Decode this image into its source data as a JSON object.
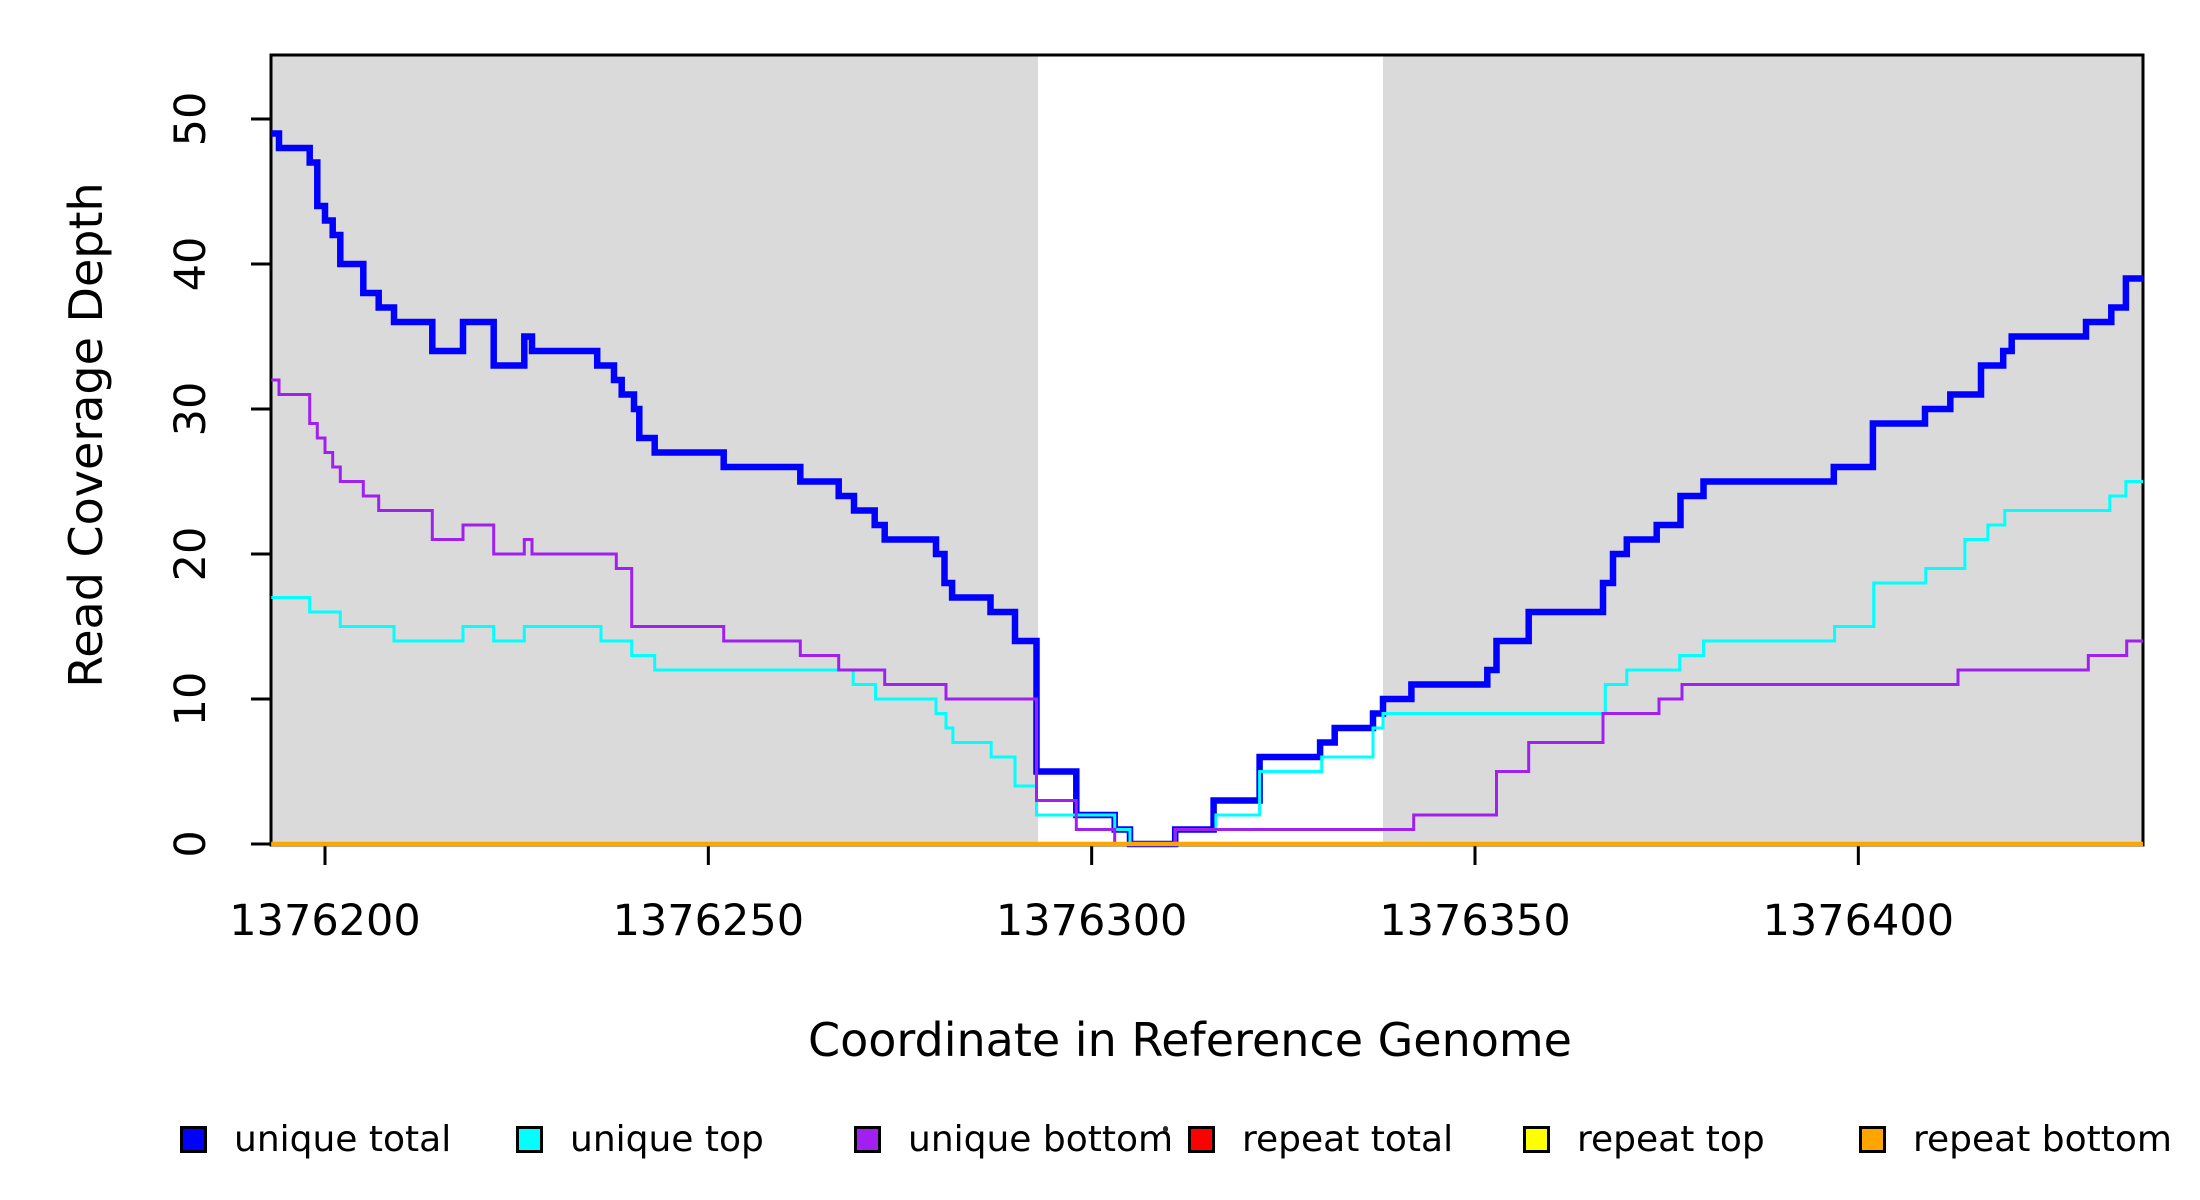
{
  "chart_data": {
    "type": "line",
    "step": true,
    "title": "",
    "xlabel": "Coordinate in Reference Genome",
    "ylabel": "Read Coverage Depth",
    "x_range": [
      1376193,
      1376437
    ],
    "ylim": [
      0,
      54
    ],
    "x_ticks": [
      1376200,
      1376250,
      1376300,
      1376350,
      1376400
    ],
    "y_ticks": [
      0,
      10,
      20,
      30,
      40,
      50
    ],
    "grid": false,
    "legend_position": "bottom",
    "band_color": "#DADADA",
    "plot_border_color": "#000000",
    "shaded_regions": [
      {
        "x0": 1376193,
        "x1": 1376293
      },
      {
        "x0": 1376338,
        "x1": 1376437.5
      }
    ],
    "series": [
      {
        "name": "unique total",
        "color": "#0000FF",
        "width": 6.5,
        "points": [
          [
            1376193,
            49
          ],
          [
            1376194,
            48
          ],
          [
            1376198,
            47
          ],
          [
            1376199,
            44
          ],
          [
            1376200,
            43
          ],
          [
            1376201,
            42
          ],
          [
            1376202,
            40
          ],
          [
            1376205,
            38
          ],
          [
            1376207,
            37
          ],
          [
            1376209,
            36
          ],
          [
            1376214,
            34
          ],
          [
            1376218,
            36
          ],
          [
            1376222,
            33
          ],
          [
            1376226,
            35
          ],
          [
            1376227,
            34
          ],
          [
            1376235.5,
            33
          ],
          [
            1376237.7,
            32
          ],
          [
            1376238.7,
            31
          ],
          [
            1376240.3,
            30
          ],
          [
            1376241,
            28
          ],
          [
            1376243,
            27
          ],
          [
            1376252,
            26
          ],
          [
            1376262,
            25
          ],
          [
            1376267,
            24
          ],
          [
            1376269,
            23
          ],
          [
            1376271.7,
            22
          ],
          [
            1376273,
            21
          ],
          [
            1376279.7,
            20
          ],
          [
            1376280.8,
            18
          ],
          [
            1376281.8,
            17
          ],
          [
            1376286.8,
            16
          ],
          [
            1376290,
            14
          ],
          [
            1376292.8,
            5
          ],
          [
            1376298,
            2
          ],
          [
            1376303,
            1
          ],
          [
            1376305,
            0
          ],
          [
            1376310.9,
            1
          ],
          [
            1376315.9,
            3
          ],
          [
            1376321.9,
            6
          ],
          [
            1376329.8,
            7
          ],
          [
            1376331.7,
            8
          ],
          [
            1376336.7,
            9
          ],
          [
            1376338,
            10
          ],
          [
            1376341.7,
            11
          ],
          [
            1376351.6,
            12
          ],
          [
            1376352.8,
            14
          ],
          [
            1376357,
            16
          ],
          [
            1376366.7,
            18
          ],
          [
            1376368,
            20
          ],
          [
            1376369.8,
            21
          ],
          [
            1376373.7,
            22
          ],
          [
            1376376.8,
            24
          ],
          [
            1376379.8,
            25
          ],
          [
            1376396.8,
            26
          ],
          [
            1376401.9,
            29
          ],
          [
            1376408.7,
            30
          ],
          [
            1376412,
            31
          ],
          [
            1376416,
            33
          ],
          [
            1376418.9,
            34
          ],
          [
            1376420,
            35
          ],
          [
            1376429.7,
            36
          ],
          [
            1376433,
            37
          ],
          [
            1376434.9,
            39
          ]
        ]
      },
      {
        "name": "unique top",
        "color": "#00FFFF",
        "width": 3,
        "points": [
          [
            1376193,
            17
          ],
          [
            1376198,
            16
          ],
          [
            1376202,
            15
          ],
          [
            1376209,
            14
          ],
          [
            1376218,
            15
          ],
          [
            1376222,
            14
          ],
          [
            1376226,
            15
          ],
          [
            1376236,
            14
          ],
          [
            1376240,
            13
          ],
          [
            1376243,
            12
          ],
          [
            1376268.9,
            11
          ],
          [
            1376271.8,
            10
          ],
          [
            1376279.7,
            9
          ],
          [
            1376281,
            8
          ],
          [
            1376281.9,
            7
          ],
          [
            1376286.9,
            6
          ],
          [
            1376290,
            4
          ],
          [
            1376292.8,
            2
          ],
          [
            1376303,
            1
          ],
          [
            1376305,
            0
          ],
          [
            1376310.9,
            1
          ],
          [
            1376316.2,
            2
          ],
          [
            1376321.9,
            5
          ],
          [
            1376330,
            6
          ],
          [
            1376336.7,
            8
          ],
          [
            1376338,
            9
          ],
          [
            1376367,
            11
          ],
          [
            1376369.8,
            12
          ],
          [
            1376376.7,
            13
          ],
          [
            1376379.8,
            14
          ],
          [
            1376396.9,
            15
          ],
          [
            1376402,
            18
          ],
          [
            1376408.8,
            19
          ],
          [
            1376413.9,
            21
          ],
          [
            1376416.9,
            22
          ],
          [
            1376419.1,
            23
          ],
          [
            1376432.8,
            24
          ],
          [
            1376434.9,
            25
          ]
        ]
      },
      {
        "name": "unique bottom",
        "color": "#A020F0",
        "width": 3,
        "points": [
          [
            1376193,
            32
          ],
          [
            1376194,
            31
          ],
          [
            1376198,
            29
          ],
          [
            1376199,
            28
          ],
          [
            1376200,
            27
          ],
          [
            1376201,
            26
          ],
          [
            1376202,
            25
          ],
          [
            1376205,
            24
          ],
          [
            1376207,
            23
          ],
          [
            1376214,
            21
          ],
          [
            1376218,
            22
          ],
          [
            1376222,
            20
          ],
          [
            1376226,
            21
          ],
          [
            1376227,
            20
          ],
          [
            1376238,
            19
          ],
          [
            1376240,
            15
          ],
          [
            1376252,
            14
          ],
          [
            1376262,
            13
          ],
          [
            1376267,
            12
          ],
          [
            1376273,
            11
          ],
          [
            1376281,
            10
          ],
          [
            1376292.8,
            3
          ],
          [
            1376298,
            1
          ],
          [
            1376303,
            0
          ],
          [
            1376310.9,
            1
          ],
          [
            1376342,
            2
          ],
          [
            1376352.8,
            5
          ],
          [
            1376357,
            7
          ],
          [
            1376366.7,
            9
          ],
          [
            1376374,
            10
          ],
          [
            1376377,
            11
          ],
          [
            1376413,
            12
          ],
          [
            1376430,
            13
          ],
          [
            1376435,
            14
          ]
        ]
      },
      {
        "name": "repeat total",
        "color": "#FF0000",
        "width": 3,
        "points": [
          [
            1376193,
            0
          ]
        ]
      },
      {
        "name": "repeat top",
        "color": "#FFFF00",
        "width": 3,
        "points": [
          [
            1376193,
            0
          ]
        ]
      },
      {
        "name": "repeat bottom",
        "color": "#FFA500",
        "width": 4.5,
        "points": [
          [
            1376193,
            0
          ]
        ]
      }
    ]
  },
  "x_tick_labels": [
    "1376200",
    "1376250",
    "1376300",
    "1376350",
    "1376400"
  ],
  "y_tick_labels": [
    "0",
    "10",
    "20",
    "30",
    "40",
    "50"
  ],
  "legend": {
    "items": [
      {
        "label": "unique total",
        "color": "#0000FF"
      },
      {
        "label": "unique top",
        "color": "#00FFFF"
      },
      {
        "label": "unique bottom",
        "color": "#A020F0"
      },
      {
        "label": "repeat total",
        "color": "#FF0000"
      },
      {
        "label": "repeat top",
        "color": "#FFFF00"
      },
      {
        "label": "repeat bottom",
        "color": "#FFA500"
      }
    ]
  }
}
